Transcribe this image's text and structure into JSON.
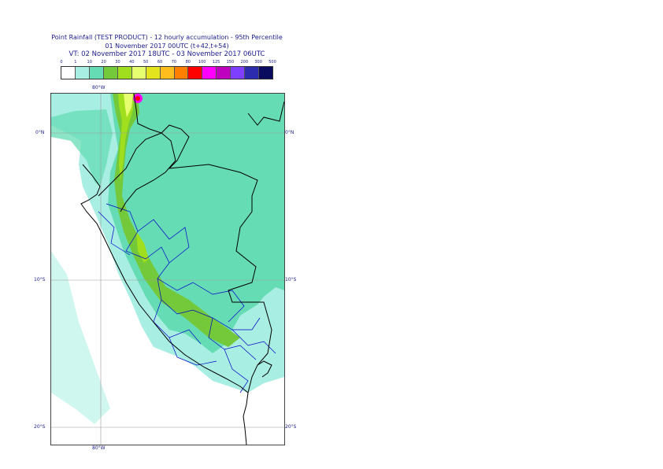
{
  "title": {
    "line1": "Point Rainfall (TEST PRODUCT) - 12 hourly accumulation - 95th Percentile",
    "line2": "01 November 2017 00UTC (t+42,t+54)",
    "line3": "VT: 02 November 2017 18UTC - 03 November 2017 06UTC"
  },
  "legend": {
    "ticks": [
      "0",
      "1",
      "10",
      "20",
      "30",
      "40",
      "50",
      "60",
      "70",
      "80",
      "100",
      "125",
      "150",
      "200",
      "300",
      "500"
    ],
    "colors": [
      "#ffffff",
      "#a8eee2",
      "#66dcb4",
      "#74c93a",
      "#a0df1e",
      "#e6ff6e",
      "#e3e31e",
      "#ffbe1e",
      "#ff7f00",
      "#ff0000",
      "#ff00ff",
      "#bf00bf",
      "#7f3fff",
      "#2c2caf",
      "#0a0a5e"
    ]
  },
  "map": {
    "lon_labels_top": [
      "80°W"
    ],
    "lon_labels_bottom": [
      "80°W"
    ],
    "lat_labels_left": [
      "0°N",
      "10°S",
      "20°S"
    ],
    "lat_labels_right": [
      "0°N",
      "10°S",
      "20°S"
    ],
    "colors": {
      "light": "#a8eee2",
      "mid": "#66dcb4",
      "green": "#74c93a",
      "yellowgreen": "#a0df1e",
      "yellow": "#e6ff6e",
      "peak": "#ff00ff",
      "peak_core": "#ff0000",
      "border": "#000000",
      "region_border": "#0000cc",
      "grid": "#9a9a9a"
    }
  }
}
